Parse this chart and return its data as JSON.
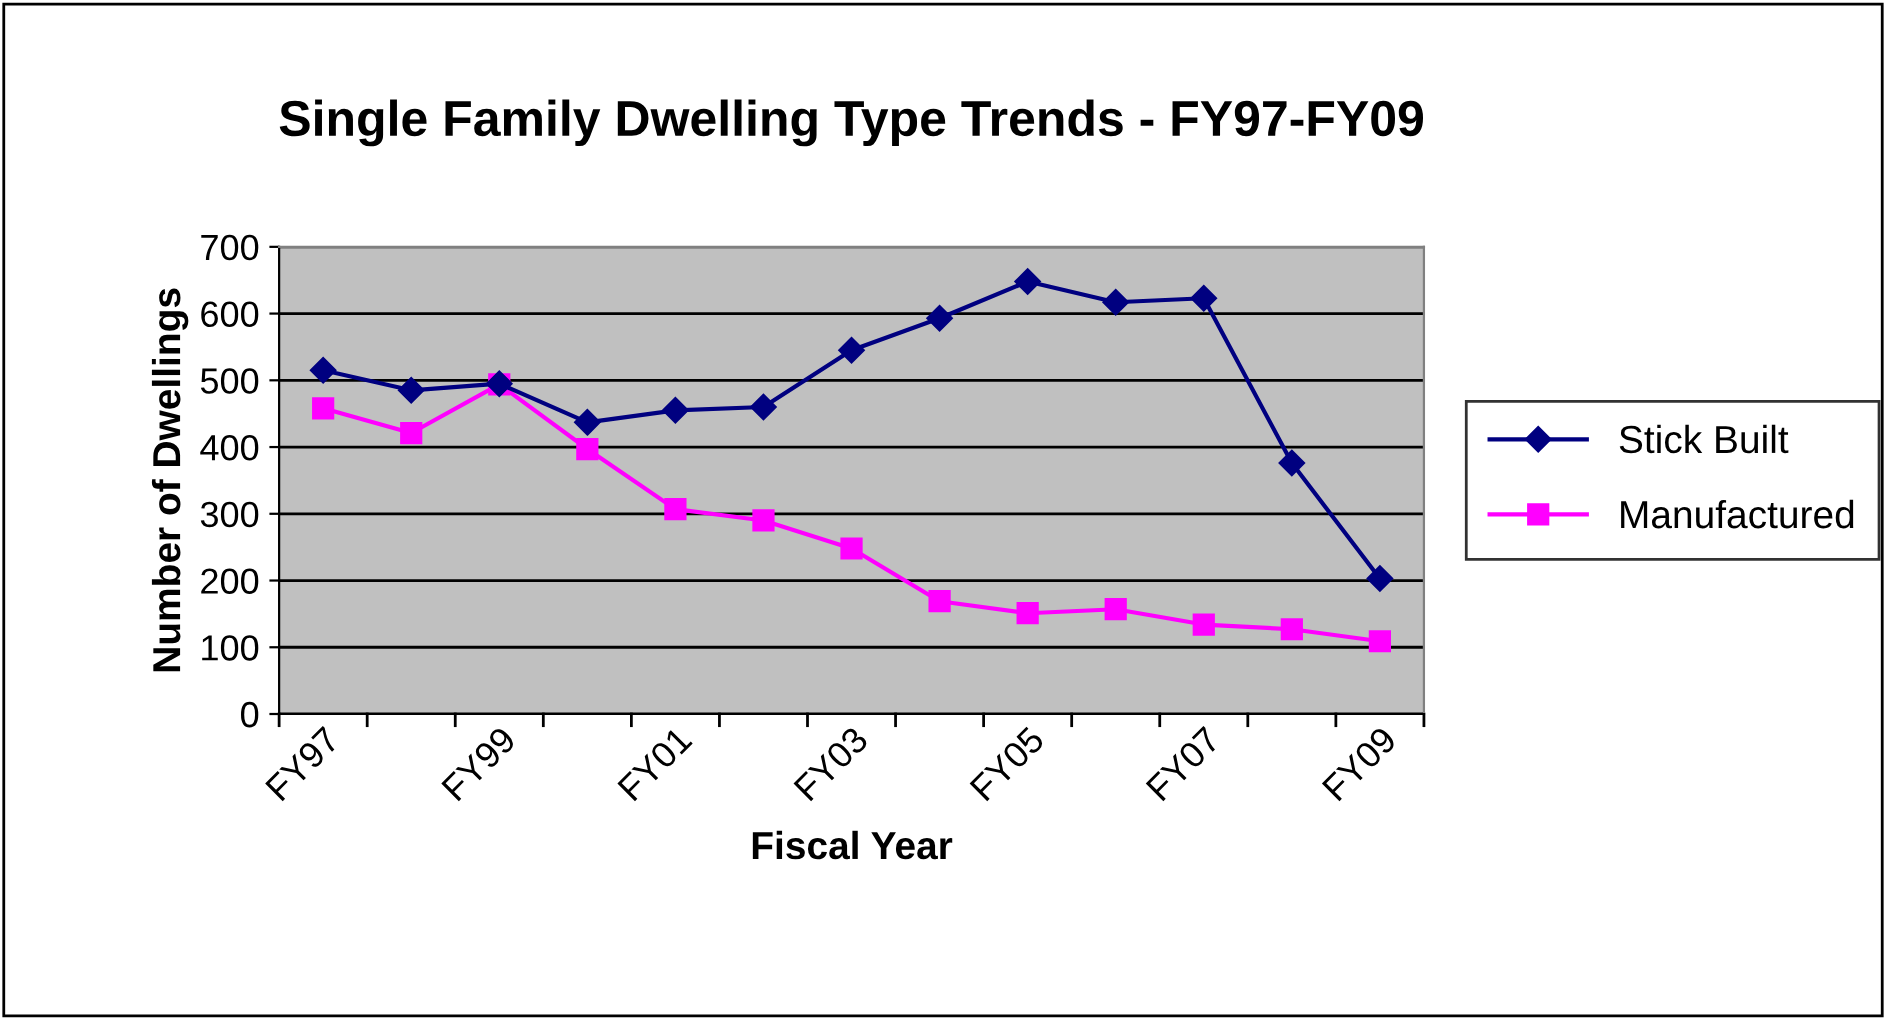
{
  "chart_data": {
    "type": "line",
    "title": "Single Family Dwelling Type Trends - FY97-FY09",
    "xlabel": "Fiscal Year",
    "ylabel": "Number of Dwellings",
    "categories": [
      "FY97",
      null,
      "FY99",
      null,
      "FY01",
      null,
      "FY03",
      null,
      "FY05",
      null,
      "FY07",
      null,
      "FY09"
    ],
    "series": [
      {
        "name": "Stick Built",
        "color": "#000080",
        "marker": "diamond",
        "values": [
          515,
          485,
          495,
          437,
          455,
          460,
          545,
          593,
          648,
          617,
          623,
          376,
          203
        ]
      },
      {
        "name": "Manufactured",
        "color": "#ff00ff",
        "marker": "square",
        "values": [
          458,
          421,
          494,
          397,
          307,
          290,
          248,
          169,
          151,
          157,
          134,
          127,
          109
        ]
      }
    ],
    "ylim": [
      0,
      700
    ],
    "yticks": [
      0,
      100,
      200,
      300,
      400,
      500,
      600,
      700
    ],
    "grid": "y",
    "legend": "right"
  }
}
